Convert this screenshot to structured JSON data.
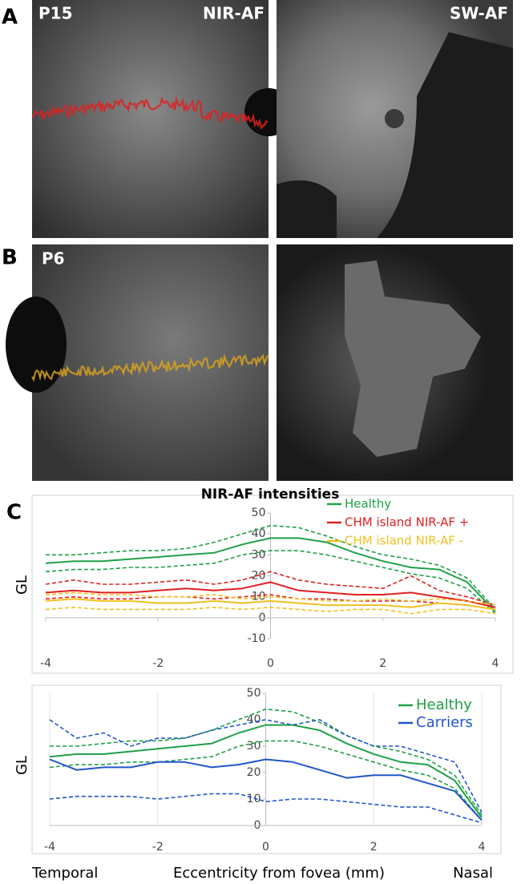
{
  "panels": {
    "A": {
      "label": "A",
      "left": "P15",
      "left_tag": "NIR-AF",
      "right": "SW-AF"
    },
    "B": {
      "label": "B",
      "left": "P6"
    },
    "C": {
      "label": "C"
    }
  },
  "chart_data": [
    {
      "type": "line",
      "title": "NIR-AF intensities",
      "ylabel": "GL",
      "x": [
        -4,
        -3.5,
        -3,
        -2.5,
        -2,
        -1.5,
        -1,
        -0.5,
        0,
        0.5,
        1,
        1.5,
        2,
        2.5,
        3,
        3.5,
        4
      ],
      "xlim": [
        -4,
        4
      ],
      "xticks": [
        -4,
        -2,
        0,
        2,
        4
      ],
      "ylim": [
        -10,
        50
      ],
      "yticks": [
        -10,
        0,
        10,
        20,
        30,
        40,
        50
      ],
      "grid": false,
      "series": [
        {
          "name": "Healthy",
          "color": "#1fa046",
          "values": [
            26,
            27,
            27,
            28,
            29,
            30,
            31,
            35,
            38,
            38,
            36,
            31,
            27,
            24,
            23,
            17,
            3
          ],
          "upper": [
            30,
            30,
            31,
            32,
            32,
            33,
            36,
            40,
            44,
            43,
            39,
            34,
            30,
            28,
            25,
            19,
            4
          ],
          "lower": [
            22,
            23,
            23,
            24,
            24,
            25,
            26,
            30,
            32,
            32,
            30,
            27,
            24,
            21,
            19,
            14,
            2
          ]
        },
        {
          "name": "CHM island NIR-AF +",
          "color": "#e02020",
          "values": [
            12,
            13,
            12,
            12,
            13,
            14,
            13,
            14,
            17,
            13,
            12,
            11,
            11,
            12,
            10,
            8,
            5
          ],
          "upper": [
            16,
            18,
            16,
            16,
            17,
            18,
            16,
            18,
            22,
            18,
            16,
            15,
            14,
            20,
            13,
            10,
            6
          ],
          "lower": [
            9,
            10,
            9,
            9,
            10,
            10,
            9,
            10,
            11,
            9,
            9,
            8,
            8,
            8,
            7,
            6,
            4
          ]
        },
        {
          "name": "CHM island NIR-AF -",
          "color": "#f0c020",
          "values": [
            8,
            9,
            8,
            8,
            7,
            7,
            8,
            7,
            8,
            7,
            6,
            6,
            6,
            5,
            7,
            6,
            4
          ],
          "upper": [
            11,
            12,
            11,
            11,
            10,
            10,
            11,
            9,
            10,
            9,
            8,
            8,
            9,
            8,
            9,
            8,
            6
          ],
          "lower": [
            4,
            5,
            4,
            4,
            4,
            4,
            5,
            4,
            5,
            4,
            3,
            4,
            4,
            2,
            4,
            4,
            2
          ]
        }
      ]
    },
    {
      "type": "line",
      "ylabel": "GL",
      "xlabel": "Eccentricity from fovea (mm)",
      "annotations": [
        "Temporal",
        "Nasal"
      ],
      "x": [
        -4,
        -3.5,
        -3,
        -2.5,
        -2,
        -1.5,
        -1,
        -0.5,
        0,
        0.5,
        1,
        1.5,
        2,
        2.5,
        3,
        3.5,
        4
      ],
      "xlim": [
        -4,
        4
      ],
      "xticks": [
        -4,
        -2,
        0,
        2,
        4
      ],
      "ylim": [
        0,
        50
      ],
      "yticks": [
        0,
        10,
        20,
        30,
        40,
        50
      ],
      "grid": "x",
      "series": [
        {
          "name": "Healthy",
          "color": "#1fa046",
          "values": [
            26,
            27,
            27,
            28,
            29,
            30,
            31,
            35,
            38,
            38,
            36,
            31,
            27,
            24,
            23,
            17,
            3
          ],
          "upper": [
            30,
            30,
            31,
            32,
            32,
            33,
            36,
            40,
            44,
            43,
            39,
            34,
            30,
            28,
            25,
            19,
            4
          ],
          "lower": [
            22,
            23,
            23,
            24,
            24,
            25,
            26,
            30,
            32,
            32,
            30,
            27,
            24,
            21,
            19,
            14,
            2
          ]
        },
        {
          "name": "Carriers",
          "color": "#2255cc",
          "values": [
            25,
            21,
            22,
            22,
            24,
            24,
            22,
            23,
            25,
            24,
            21,
            18,
            19,
            19,
            16,
            13,
            2
          ],
          "upper": [
            40,
            33,
            35,
            30,
            33,
            33,
            36,
            38,
            40,
            38,
            40,
            34,
            30,
            30,
            27,
            24,
            5
          ],
          "lower": [
            10,
            11,
            11,
            11,
            10,
            11,
            12,
            12,
            9,
            10,
            10,
            9,
            8,
            7,
            7,
            4,
            1
          ]
        }
      ]
    }
  ]
}
